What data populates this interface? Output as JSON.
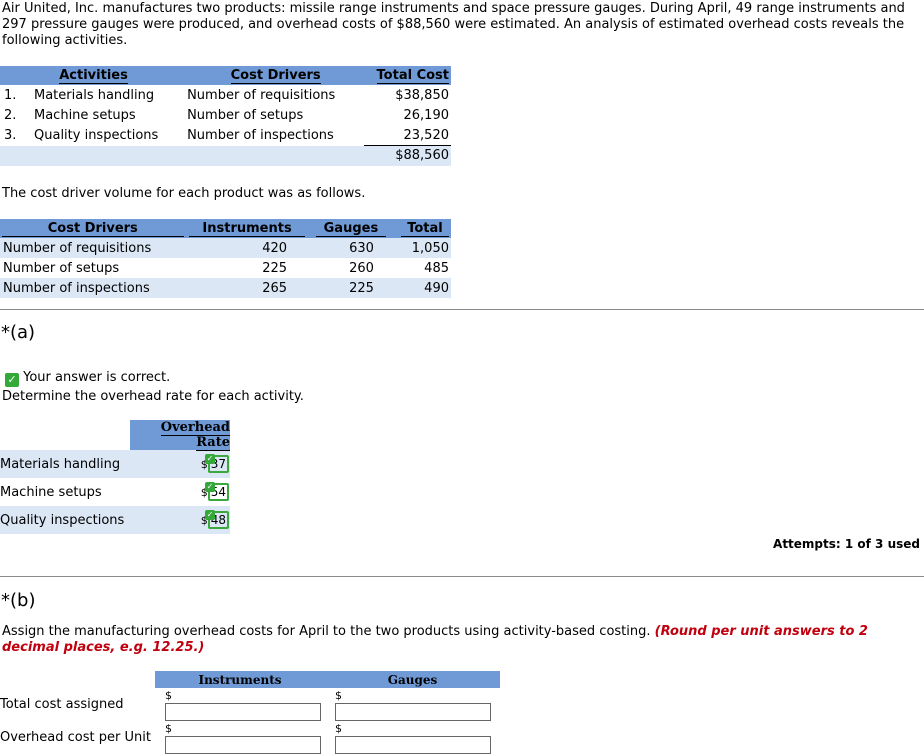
{
  "intro": "Air United, Inc. manufactures two products: missile range instruments and space pressure gauges. During April, 49 range instruments and 297 pressure gauges were produced, and overhead costs of $88,560 were estimated. An analysis of estimated overhead costs reveals the following activities.",
  "activities_table": {
    "headers": [
      "Activities",
      "Cost Drivers",
      "Total Cost"
    ],
    "rows": [
      {
        "num": "1.",
        "activity": "Materials handling",
        "driver": "Number of requisitions",
        "cost": "$38,850"
      },
      {
        "num": "2.",
        "activity": "Machine setups",
        "driver": "Number of setups",
        "cost": "26,190"
      },
      {
        "num": "3.",
        "activity": "Quality inspections",
        "driver": "Number of inspections",
        "cost": "23,520"
      }
    ],
    "total": "$88,560"
  },
  "volume_intro": "The cost driver volume for each product was as follows.",
  "volume_table": {
    "headers": [
      "Cost Drivers",
      "Instruments",
      "Gauges",
      "Total"
    ],
    "rows": [
      {
        "driver": "Number of requisitions",
        "instruments": "420",
        "gauges": "630",
        "total": "1,050"
      },
      {
        "driver": "Number of setups",
        "instruments": "225",
        "gauges": "260",
        "total": "485"
      },
      {
        "driver": "Number of inspections",
        "instruments": "265",
        "gauges": "225",
        "total": "490"
      }
    ]
  },
  "part_a": {
    "label": "*(a)",
    "correct_msg": "Your answer is correct.",
    "question": "Determine the overhead rate for each activity.",
    "header": "Overhead Rate",
    "rows": [
      {
        "activity": "Materials handling",
        "currency": "$",
        "value": "37"
      },
      {
        "activity": "Machine setups",
        "currency": "$",
        "value": "54"
      },
      {
        "activity": "Quality inspections",
        "currency": "$",
        "value": "48"
      }
    ],
    "attempts": "Attempts: 1 of 3 used"
  },
  "part_b": {
    "label": "*(b)",
    "question": "Assign the manufacturing overhead costs for April to the two products using activity-based costing.",
    "note": "(Round per unit answers to 2 decimal places, e.g. 12.25.)",
    "headers": [
      "Instruments",
      "Gauges"
    ],
    "rows": [
      {
        "label": "Total cost assigned",
        "currency": "$",
        "instruments": "",
        "gauges": ""
      },
      {
        "label": "Overhead cost per Unit",
        "currency": "$",
        "instruments": "",
        "gauges": ""
      }
    ]
  }
}
